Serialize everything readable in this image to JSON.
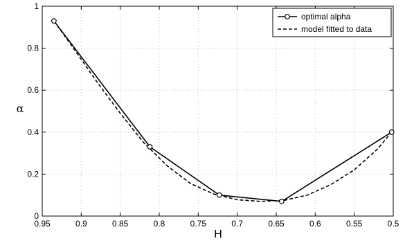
{
  "chart_data": {
    "type": "line",
    "xlabel": "H",
    "ylabel": "α",
    "xlim": [
      0.95,
      0.5
    ],
    "ylim": [
      0,
      1
    ],
    "x_reversed": true,
    "grid": true,
    "legend_position": "top-right",
    "xticks": [
      0.95,
      0.9,
      0.85,
      0.8,
      0.75,
      0.7,
      0.65,
      0.6,
      0.55,
      0.5
    ],
    "xtick_labels": [
      "0.95",
      "0.9",
      "0.85",
      "0.8",
      "0.75",
      "0.7",
      "0.65",
      "0.6",
      "0.55",
      "0.5"
    ],
    "yticks": [
      0,
      0.2,
      0.4,
      0.6,
      0.8,
      1
    ],
    "ytick_labels": [
      "0",
      "0.2",
      "0.4",
      "0.6",
      "0.8",
      "1"
    ],
    "series": [
      {
        "name": "optimal alpha",
        "style": "solid",
        "marker": "circle",
        "color": "#000000",
        "x": [
          0.935,
          0.812,
          0.723,
          0.643,
          0.502
        ],
        "y": [
          0.93,
          0.33,
          0.1,
          0.07,
          0.4
        ]
      },
      {
        "name": "model fitted to data",
        "style": "dashed",
        "marker": "none",
        "color": "#000000",
        "x": [
          0.935,
          0.91,
          0.88,
          0.85,
          0.82,
          0.79,
          0.76,
          0.73,
          0.7,
          0.67,
          0.64,
          0.61,
          0.58,
          0.55,
          0.52,
          0.502
        ],
        "y": [
          0.93,
          0.8,
          0.64,
          0.49,
          0.35,
          0.24,
          0.155,
          0.105,
          0.078,
          0.07,
          0.075,
          0.1,
          0.15,
          0.22,
          0.32,
          0.4
        ]
      }
    ]
  }
}
